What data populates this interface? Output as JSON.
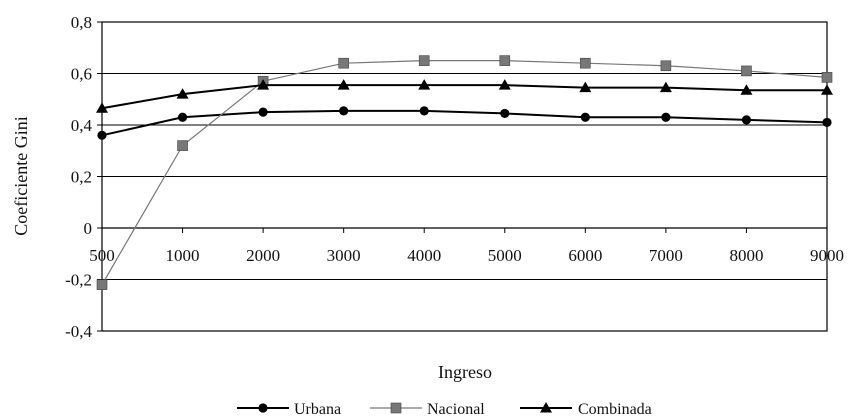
{
  "chart_data": {
    "type": "line",
    "xlabel": "Ingreso",
    "ylabel": "Coeficiente Gini",
    "ylim": [
      -0.4,
      0.8
    ],
    "yticks": [
      "-0,4",
      "-0,2",
      "0",
      "0,2",
      "0,4",
      "0,6",
      "0,8"
    ],
    "categories": [
      "500",
      "1000",
      "2000",
      "3000",
      "4000",
      "5000",
      "6000",
      "7000",
      "8000",
      "9000"
    ],
    "grid": "horizontal",
    "legend_position": "bottom",
    "series": [
      {
        "name": "Urbana",
        "marker": "circle",
        "color": "#000000",
        "values": [
          0.36,
          0.43,
          0.45,
          0.455,
          0.455,
          0.445,
          0.43,
          0.43,
          0.42,
          0.41
        ]
      },
      {
        "name": "Nacional",
        "marker": "square",
        "color": "#777777",
        "values": [
          -0.22,
          0.32,
          0.57,
          0.64,
          0.65,
          0.65,
          0.64,
          0.63,
          0.61,
          0.585
        ]
      },
      {
        "name": "Combinada",
        "marker": "triangle",
        "color": "#000000",
        "values": [
          0.465,
          0.52,
          0.555,
          0.555,
          0.555,
          0.555,
          0.545,
          0.545,
          0.535,
          0.535
        ]
      }
    ]
  }
}
